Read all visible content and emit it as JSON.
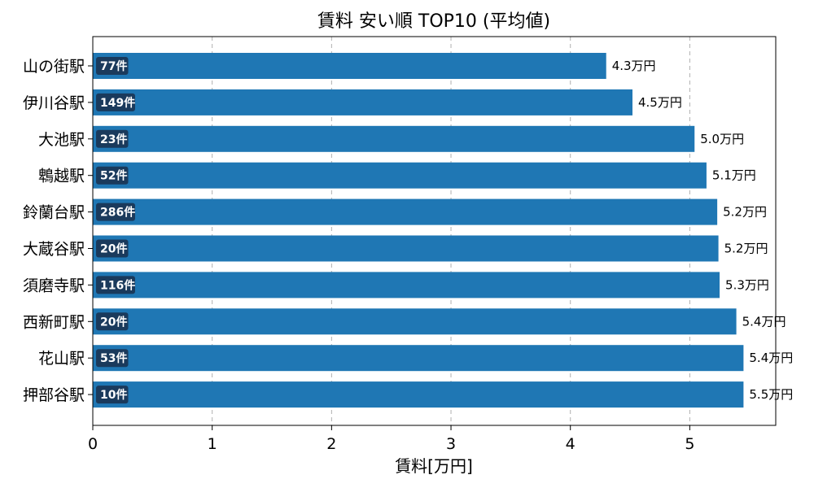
{
  "chart_data": {
    "type": "bar",
    "orientation": "horizontal",
    "title": "賃料 安い順 TOP10 (平均値)",
    "xlabel": "賃料[万円]",
    "ylabel": "",
    "xlim": [
      0,
      5.72
    ],
    "xticks": [
      0,
      1,
      2,
      3,
      4,
      5
    ],
    "xtick_labels": [
      "0",
      "1",
      "2",
      "3",
      "4",
      "5"
    ],
    "grid": "x-dashed",
    "categories": [
      "山の街駅",
      "伊川谷駅",
      "大池駅",
      "鵯越駅",
      "鈴蘭台駅",
      "大蔵谷駅",
      "須磨寺駅",
      "西新町駅",
      "花山駅",
      "押部谷駅"
    ],
    "values": [
      4.3,
      4.52,
      5.04,
      5.14,
      5.23,
      5.24,
      5.25,
      5.39,
      5.45,
      5.45
    ],
    "value_labels": [
      "4.3万円",
      "4.5万円",
      "5.0万円",
      "5.1万円",
      "5.2万円",
      "5.2万円",
      "5.3万円",
      "5.4万円",
      "5.4万円",
      "5.5万円"
    ],
    "count_labels": [
      "77件",
      "149件",
      "23件",
      "52件",
      "286件",
      "20件",
      "116件",
      "20件",
      "53件",
      "10件"
    ],
    "colors": {
      "bar": "#1f77b4",
      "badge": "#1a3a5c",
      "grid": "#b0b0b0"
    }
  }
}
